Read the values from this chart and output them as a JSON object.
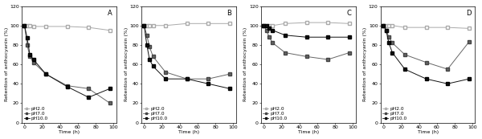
{
  "subplots": [
    {
      "label": "A",
      "time": [
        0,
        3,
        6,
        10,
        24,
        48,
        72,
        96
      ],
      "pH2": [
        100,
        100,
        100,
        99,
        99,
        99,
        98,
        95
      ],
      "pH7": [
        100,
        80,
        68,
        62,
        50,
        38,
        35,
        20
      ],
      "pH10": [
        100,
        87,
        70,
        65,
        50,
        37,
        26,
        35
      ],
      "ylim": [
        0,
        120
      ],
      "yticks": [
        0,
        20,
        40,
        60,
        80,
        100,
        120
      ]
    },
    {
      "label": "B",
      "time": [
        0,
        3,
        6,
        10,
        24,
        48,
        72,
        96
      ],
      "pH2": [
        100,
        100,
        100,
        100,
        100,
        102,
        102,
        102
      ],
      "pH7": [
        100,
        90,
        78,
        68,
        52,
        45,
        45,
        50
      ],
      "pH10": [
        100,
        80,
        65,
        58,
        45,
        45,
        40,
        35
      ],
      "ylim": [
        0,
        120
      ],
      "yticks": [
        0,
        20,
        40,
        60,
        80,
        100,
        120
      ]
    },
    {
      "label": "C",
      "time": [
        0,
        3,
        6,
        10,
        24,
        48,
        72,
        96
      ],
      "pH2": [
        100,
        100,
        100,
        100,
        102,
        103,
        103,
        102
      ],
      "pH7": [
        100,
        95,
        88,
        82,
        72,
        68,
        65,
        72
      ],
      "pH10": [
        100,
        100,
        97,
        95,
        90,
        88,
        88,
        88
      ],
      "ylim": [
        0,
        120
      ],
      "yticks": [
        0,
        20,
        40,
        60,
        80,
        100,
        120
      ]
    },
    {
      "label": "D",
      "time": [
        0,
        3,
        6,
        10,
        24,
        48,
        72,
        96
      ],
      "pH2": [
        100,
        100,
        100,
        100,
        98,
        98,
        98,
        97
      ],
      "pH7": [
        100,
        95,
        88,
        82,
        70,
        62,
        55,
        83
      ],
      "pH10": [
        100,
        95,
        82,
        72,
        55,
        45,
        40,
        45
      ],
      "ylim": [
        0,
        120
      ],
      "yticks": [
        0,
        20,
        40,
        60,
        80,
        100,
        120
      ]
    }
  ],
  "xlabel": "Time (h)",
  "ylabel": "Retention of anthocyanin (%)",
  "xticks": [
    0,
    20,
    40,
    60,
    80,
    100
  ],
  "legend_labels": [
    "pH2.0",
    "pH7.0",
    "pH10.0"
  ],
  "fontsize": 4.5
}
